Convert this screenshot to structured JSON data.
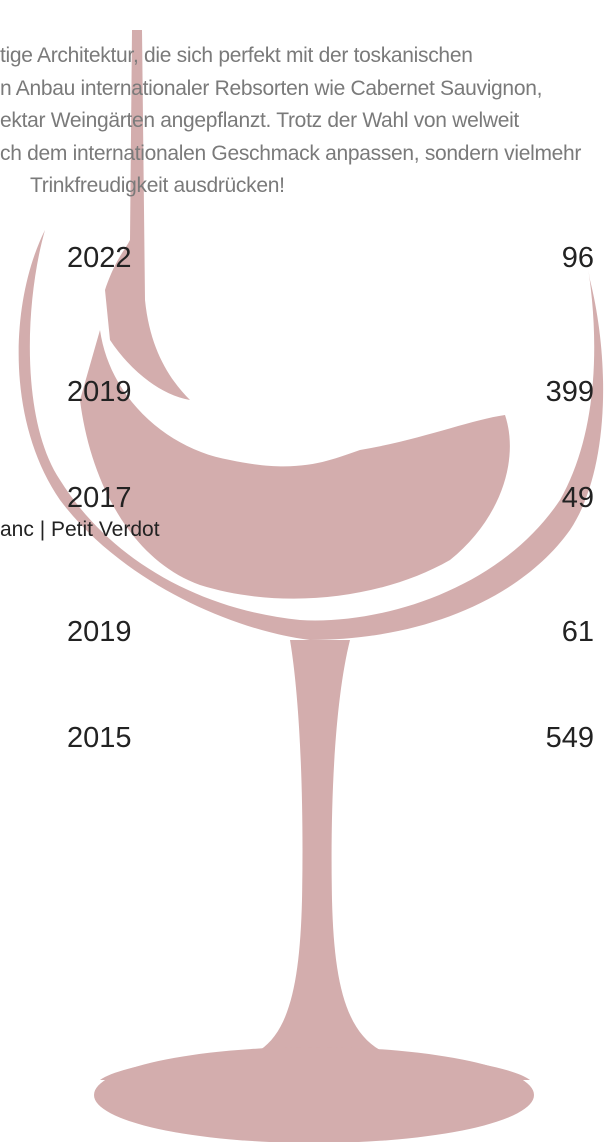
{
  "description": {
    "lines": [
      "tige Architektur, die sich perfekt mit der toskanischen",
      "n Anbau internationaler Rebsorten wie Cabernet Sauvignon,",
      "ektar Weingärten angepflanzt. Trotz der Wahl von welweit",
      "ch dem internationalen Geschmack anpassen, sondern vielmehr",
      "Trinkfreudigkeit ausdrücken!"
    ]
  },
  "wines": [
    {
      "year": "2022",
      "price": "96"
    },
    {
      "year": "2019",
      "price": "399"
    },
    {
      "year": "2017",
      "price": "49",
      "grapes": "anc | Petit Verdot"
    },
    {
      "year": "2019",
      "price": "61"
    },
    {
      "year": "2015",
      "price": "549"
    }
  ]
}
